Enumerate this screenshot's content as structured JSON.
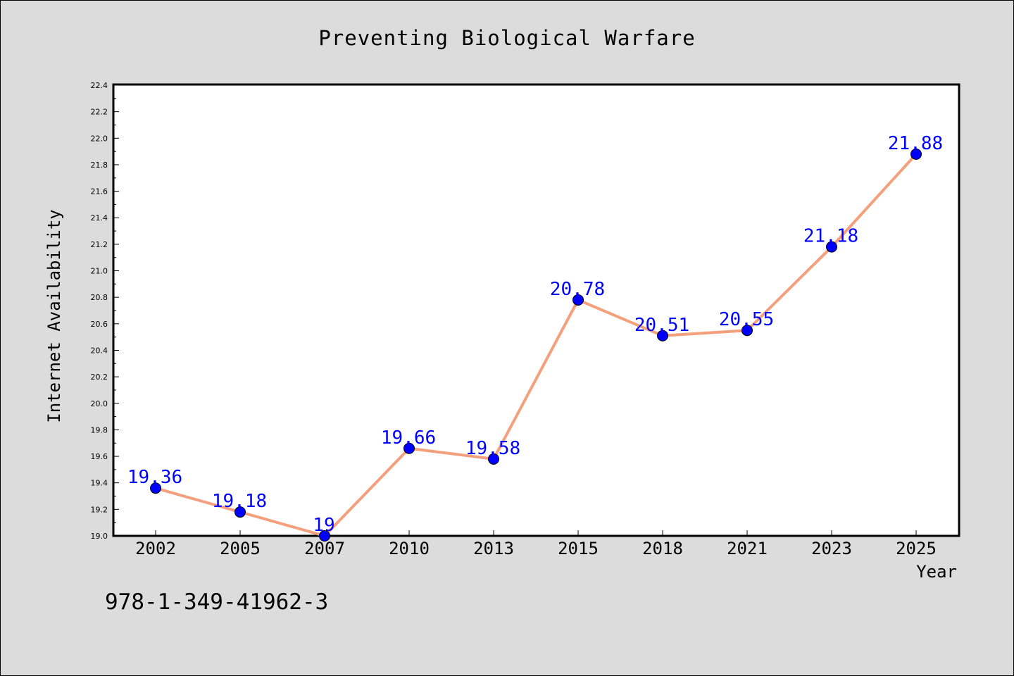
{
  "chart_data": {
    "type": "line",
    "title": "Preventing Biological Warfare",
    "xlabel": "Year",
    "ylabel": "Internet Availability",
    "categories": [
      "2002",
      "2005",
      "2007",
      "2010",
      "2013",
      "2015",
      "2018",
      "2021",
      "2023",
      "2025"
    ],
    "series": [
      {
        "values": [
          19.36,
          19.18,
          19.0,
          19.66,
          19.58,
          20.78,
          20.51,
          20.55,
          21.18,
          21.88
        ],
        "data_labels": [
          "19.36",
          "19.18",
          "19",
          "19.66",
          "19.58",
          "20.78",
          "20.51",
          "20.55",
          "21.18",
          "21.88"
        ],
        "line_color": "#f4a07c",
        "marker_color": "#0000ff"
      }
    ],
    "ylim": [
      19.0,
      22.4
    ],
    "yticks": [
      "19.0",
      "19.2",
      "19.4",
      "19.6",
      "19.8",
      "20.0",
      "20.2",
      "20.4",
      "20.6",
      "20.8",
      "21.0",
      "21.2",
      "21.4",
      "21.6",
      "21.8",
      "22.0",
      "22.2",
      "22.4"
    ],
    "grid": false,
    "legend": "none"
  },
  "footer": {
    "isbn": "978-1-349-41962-3"
  },
  "colors": {
    "background": "#dcdcdc",
    "plot_background": "#ffffff",
    "line": "#f4a07c",
    "marker": "#0000ff",
    "label": "#0000ff"
  }
}
